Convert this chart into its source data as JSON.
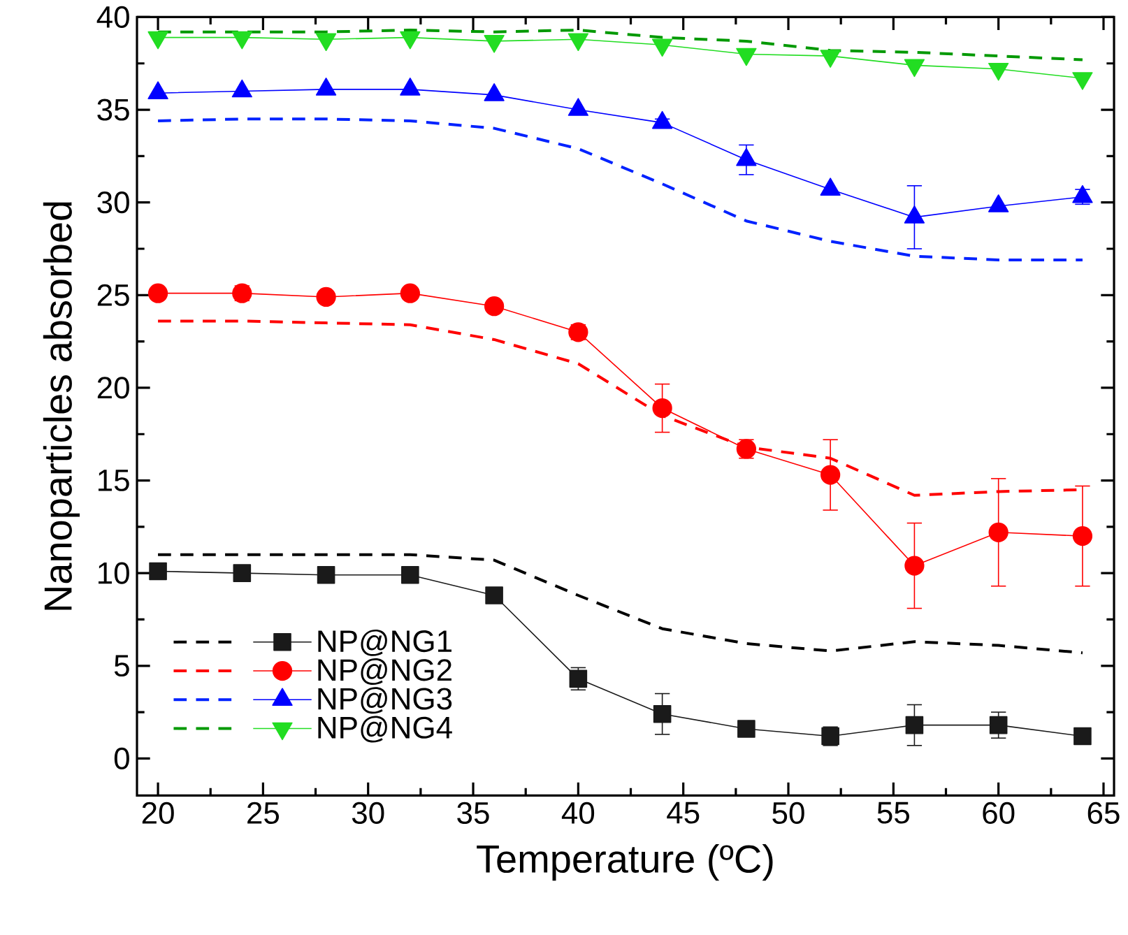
{
  "chart_data": {
    "type": "line",
    "xlabel": "Temperature (ºC)",
    "ylabel": "Nanoparticles absorbed",
    "x": [
      20,
      24,
      28,
      32,
      36,
      40,
      44,
      48,
      52,
      56,
      60,
      64
    ],
    "xlim": [
      19,
      65.5
    ],
    "ylim": [
      -2,
      40
    ],
    "xticks": [
      20,
      25,
      30,
      35,
      40,
      45,
      50,
      55,
      60,
      65
    ],
    "yticks": [
      0,
      5,
      10,
      15,
      20,
      25,
      30,
      35,
      40
    ],
    "legend": "bottom left",
    "grid": false,
    "series": [
      {
        "color": "#000000",
        "line_style": "dashed",
        "marker": "none",
        "values": [
          11.0,
          11.0,
          11.0,
          11.0,
          10.7,
          8.8,
          7.0,
          6.2,
          5.8,
          6.3,
          6.1,
          5.7
        ]
      },
      {
        "name": "NP@NG1",
        "color": "#1a1a1a",
        "line_style": "solid",
        "marker": "square",
        "values": [
          10.1,
          10.0,
          9.9,
          9.9,
          8.8,
          4.3,
          2.4,
          1.6,
          1.2,
          1.8,
          1.8,
          1.2
        ],
        "errors": [
          null,
          null,
          null,
          null,
          null,
          0.6,
          1.1,
          0.4,
          0.5,
          1.1,
          0.7,
          0.2
        ]
      },
      {
        "color": "#ff0000",
        "line_style": "dashed",
        "marker": "none",
        "values": [
          23.6,
          23.6,
          23.5,
          23.4,
          22.6,
          21.3,
          18.5,
          16.8,
          16.2,
          14.2,
          14.4,
          14.5
        ]
      },
      {
        "name": "NP@NG2",
        "color": "#ff0000",
        "line_style": "solid",
        "marker": "circle",
        "values": [
          25.1,
          25.1,
          24.9,
          25.1,
          24.4,
          23.0,
          18.9,
          16.7,
          15.3,
          10.4,
          12.2,
          12.0
        ],
        "errors": [
          null,
          0.4,
          null,
          null,
          0.3,
          0.4,
          1.3,
          0.5,
          1.9,
          2.3,
          2.9,
          2.7
        ]
      },
      {
        "color": "#0022ff",
        "line_style": "dashed",
        "marker": "none",
        "values": [
          34.4,
          34.5,
          34.5,
          34.4,
          34.0,
          32.9,
          31.0,
          29.0,
          27.9,
          27.1,
          26.9,
          26.9
        ]
      },
      {
        "name": "NP@NG3",
        "color": "#0000ff",
        "line_style": "solid",
        "marker": "triangle",
        "values": [
          35.9,
          36.0,
          36.1,
          36.1,
          35.8,
          35.0,
          34.3,
          32.3,
          30.7,
          29.2,
          29.8,
          30.3
        ],
        "errors": [
          null,
          null,
          null,
          null,
          null,
          null,
          0.2,
          0.8,
          null,
          1.7,
          null,
          0.4
        ]
      },
      {
        "color": "#009900",
        "line_style": "dashed",
        "marker": "none",
        "values": [
          39.2,
          39.2,
          39.2,
          39.3,
          39.2,
          39.3,
          38.9,
          38.7,
          38.2,
          38.1,
          37.9,
          37.7
        ]
      },
      {
        "name": "NP@NG4",
        "color": "#22dd22",
        "line_style": "solid",
        "marker": "triangle-down",
        "values": [
          38.9,
          38.9,
          38.8,
          38.9,
          38.7,
          38.8,
          38.5,
          38.0,
          37.9,
          37.4,
          37.2,
          36.7
        ]
      }
    ]
  }
}
